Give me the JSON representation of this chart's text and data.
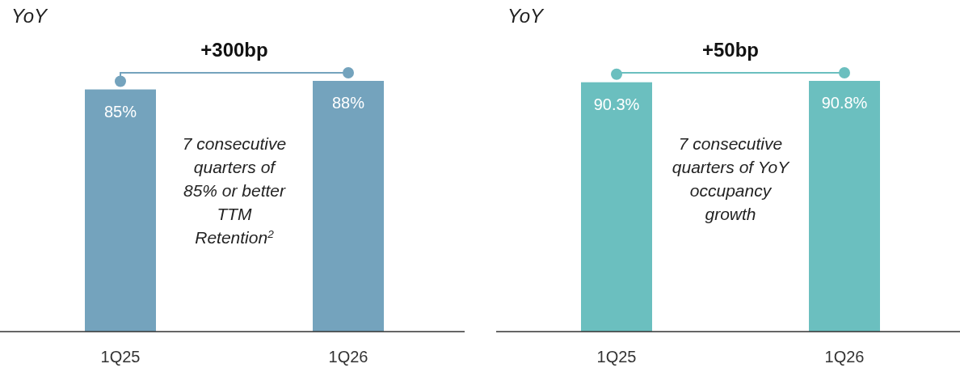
{
  "chart_data": [
    {
      "type": "bar",
      "title": "YoY",
      "categories": [
        "1Q25",
        "1Q26"
      ],
      "values": [
        85,
        88
      ],
      "value_labels": [
        "85%",
        "88%"
      ],
      "color": "#74a3bd",
      "tick_labels": "x",
      "annotations": [
        "+300bp",
        "7 consecutive\nquarters of\n85% or better\nTTM\nRetention$^{2}$"
      ]
    },
    {
      "type": "bar",
      "title": "YoY",
      "categories": [
        "1Q25",
        "1Q26"
      ],
      "values": [
        90.3,
        90.8
      ],
      "value_labels": [
        "90.3%",
        "90.8%"
      ],
      "color": "#6bbfbf",
      "tick_labels": "x",
      "annotations": [
        "+50bp",
        "7 consecutive\nquarters of YoY\noccupancy\ngrowth"
      ]
    }
  ]
}
